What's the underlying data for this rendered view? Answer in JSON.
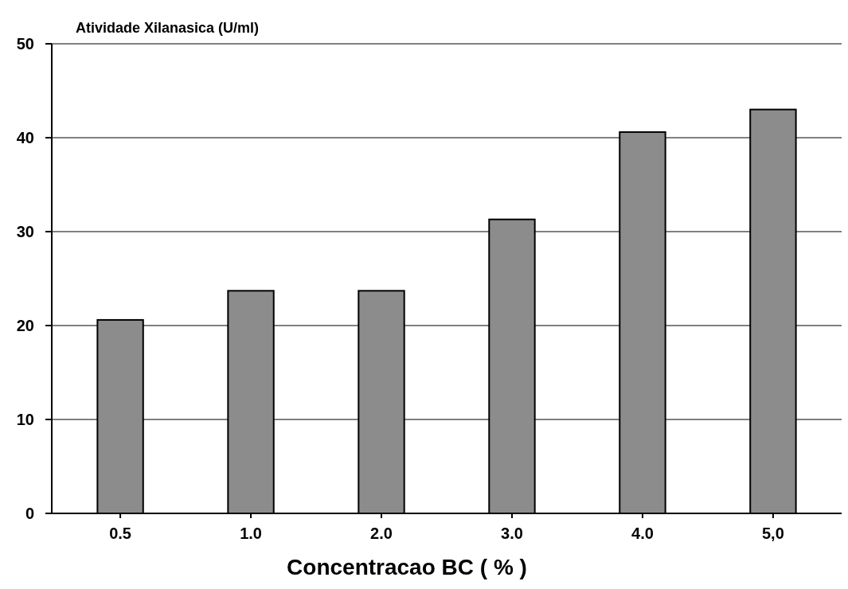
{
  "chart_data": {
    "type": "bar",
    "ylabel": "Atividade Xilanasica (U/ml)",
    "xlabel": "Concentracao BC ( % )",
    "categories": [
      "0.5",
      "1.0",
      "2.0",
      "3.0",
      "4.0",
      "5,0"
    ],
    "values": [
      20.6,
      23.7,
      23.7,
      31.3,
      40.6,
      43.0
    ],
    "color": "#8c8c8c",
    "ylim": [
      0,
      50
    ],
    "yticks": [
      0,
      10,
      20,
      30,
      40,
      50
    ],
    "grid": "y"
  }
}
